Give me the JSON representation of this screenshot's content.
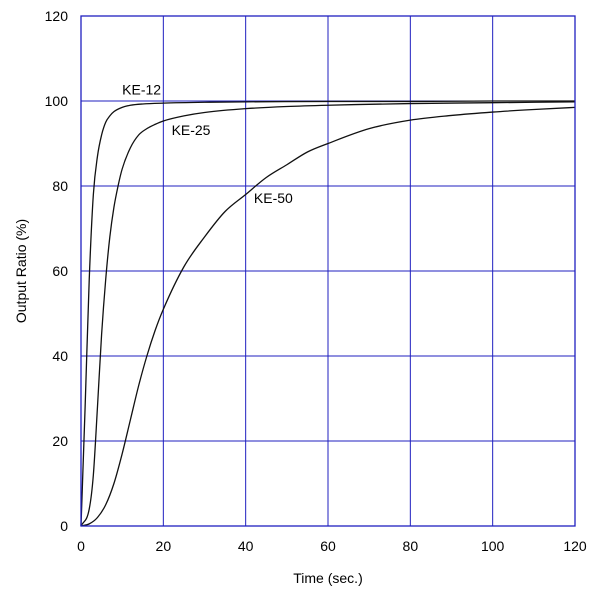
{
  "chart_data": {
    "type": "line",
    "xlabel": "Time (sec.)",
    "ylabel": "Output Ratio (%)",
    "xlim": [
      0,
      120
    ],
    "ylim": [
      0,
      120
    ],
    "xticks": [
      "0",
      "20",
      "40",
      "60",
      "80",
      "100",
      "120"
    ],
    "yticks": [
      "0",
      "20",
      "40",
      "60",
      "80",
      "100",
      "120"
    ],
    "grid": true,
    "colors": {
      "grid": "#1f1fbf",
      "frame": "#1f1fbf",
      "curve": "#111111",
      "text": "#000000",
      "background": "#ffffff"
    },
    "series": [
      {
        "name": "KE-12",
        "x": [
          0,
          1,
          2,
          3,
          4,
          5,
          6,
          7,
          8,
          10,
          12,
          15,
          20,
          30,
          40,
          60,
          80,
          100,
          120
        ],
        "y": [
          0,
          28,
          58,
          78,
          87,
          92,
          95,
          96.5,
          97.5,
          98.5,
          99,
          99.3,
          99.5,
          99.7,
          99.8,
          99.9,
          99.9,
          100,
          100
        ]
      },
      {
        "name": "KE-25",
        "x": [
          0,
          2,
          3,
          4,
          5,
          6,
          7,
          8,
          9,
          10,
          12,
          14,
          16,
          18,
          20,
          25,
          30,
          40,
          50,
          60,
          80,
          100,
          120
        ],
        "y": [
          0,
          4,
          12,
          28,
          45,
          58,
          68,
          75,
          80,
          84,
          89,
          92,
          93.5,
          94.5,
          95.3,
          96.5,
          97.3,
          98.2,
          98.7,
          99,
          99.4,
          99.6,
          99.8
        ]
      },
      {
        "name": "KE-50",
        "x": [
          0,
          2,
          4,
          6,
          8,
          10,
          12,
          14,
          16,
          18,
          20,
          25,
          30,
          35,
          40,
          45,
          50,
          55,
          60,
          70,
          80,
          90,
          100,
          110,
          120
        ],
        "y": [
          0,
          0.5,
          2,
          5,
          10,
          17,
          25,
          33,
          40,
          46,
          51,
          61,
          68,
          74,
          78,
          82,
          85,
          88,
          90,
          93.5,
          95.5,
          96.6,
          97.4,
          98,
          98.5
        ]
      }
    ],
    "annotations": [
      {
        "text": "KE-12",
        "x": 10,
        "y": 101.5
      },
      {
        "text": "KE-25",
        "x": 22,
        "y": 92
      },
      {
        "text": "KE-50",
        "x": 42,
        "y": 76
      }
    ]
  }
}
